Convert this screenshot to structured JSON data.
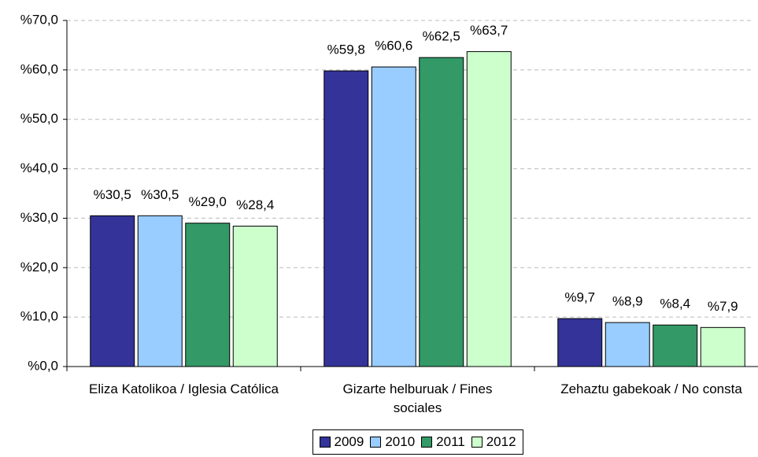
{
  "chart_data": {
    "type": "bar",
    "categories": [
      "Eliza Katolikoa /  Iglesia Católica",
      "Gizarte helburuak /  Fines sociales",
      "Zehaztu gabekoak / No consta"
    ],
    "series": [
      {
        "name": "2009",
        "color": "#333399",
        "values": [
          30.5,
          59.8,
          9.7
        ],
        "value_labels": [
          "%30,5",
          "%59,8",
          "%9,7"
        ]
      },
      {
        "name": "2010",
        "color": "#99ccff",
        "values": [
          30.5,
          60.6,
          8.9
        ],
        "value_labels": [
          "%30,5",
          "%60,6",
          "%8,9"
        ]
      },
      {
        "name": "2011",
        "color": "#339966",
        "values": [
          29.0,
          62.5,
          8.4
        ],
        "value_labels": [
          "%29,0",
          "%62,5",
          "%8,4"
        ]
      },
      {
        "name": "2012",
        "color": "#ccffcc",
        "values": [
          28.4,
          63.7,
          7.9
        ],
        "value_labels": [
          "%28,4",
          "%63,7",
          "%7,9"
        ]
      }
    ],
    "ylim": [
      0,
      70
    ],
    "yticks": [
      {
        "value": 0,
        "label": "%0,0"
      },
      {
        "value": 10,
        "label": "%10,0"
      },
      {
        "value": 20,
        "label": "%20,0"
      },
      {
        "value": 30,
        "label": "%30,0"
      },
      {
        "value": 40,
        "label": "%40,0"
      },
      {
        "value": 50,
        "label": "%50,0"
      },
      {
        "value": 60,
        "label": "%60,0"
      },
      {
        "value": 70,
        "label": "%70,0"
      }
    ],
    "grid": true,
    "legend": "bottom"
  }
}
